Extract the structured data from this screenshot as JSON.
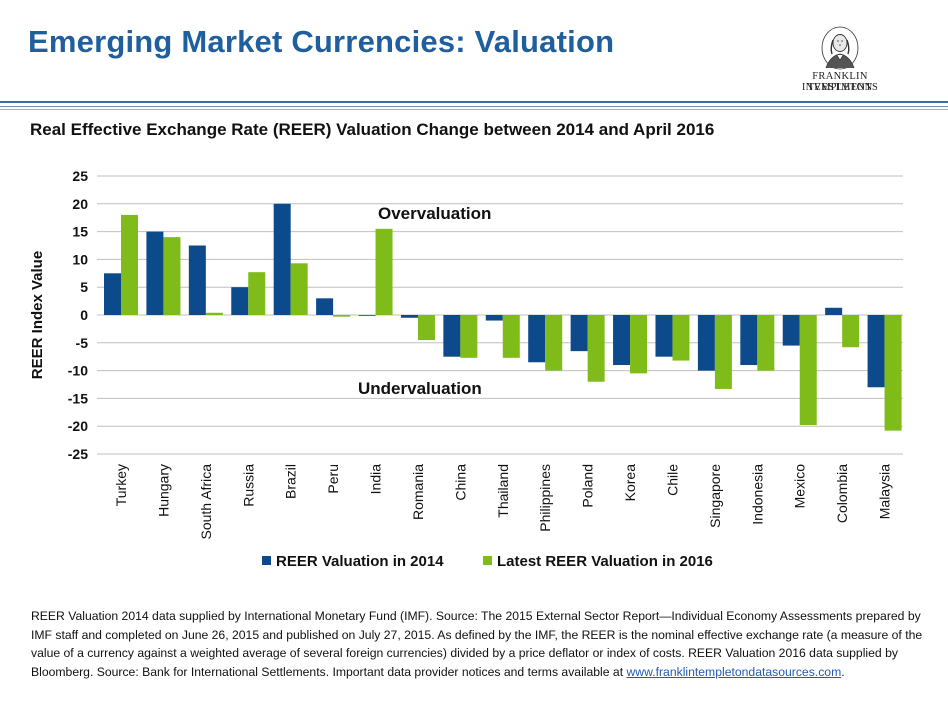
{
  "page_title": "Emerging Market Currencies: Valuation",
  "logo": {
    "line1": "FRANKLIN TEMPLETON",
    "line2": "INVESTMENTS"
  },
  "footnote": {
    "text": "REER Valuation 2014 data supplied by International Monetary Fund (IMF).  Source: The 2015 External Sector Report—Individual Economy Assessments prepared by IMF staff and completed on June 26, 2015 and published on July 27, 2015. As defined by the IMF, the REER is the nominal effective exchange rate (a measure of the value of a currency against a weighted average of several foreign currencies) divided by a price deflator or index of costs. REER Valuation 2016 data supplied by Bloomberg. Source: Bank for International Settlements. Important data provider notices and terms available at ",
    "link": "www.franklintempletondatasources.com",
    "end": "."
  },
  "colors": {
    "title": "#1f5f9e",
    "series_2014": "#0d4a8c",
    "series_2016": "#7fbc19",
    "grid": "#bfbfbf"
  },
  "chart_data": {
    "type": "bar",
    "title": "Real Effective Exchange Rate (REER) Valuation Change between 2014 and April 2016",
    "ylabel": "REER Index Value",
    "xlabel": "",
    "ylim": [
      -25,
      25
    ],
    "yticks": [
      25,
      20,
      15,
      10,
      5,
      0,
      -5,
      -10,
      -15,
      -20,
      -25
    ],
    "grid": true,
    "legend": "bottom",
    "categories": [
      "Turkey",
      "Hungary",
      "South Africa",
      "Russia",
      "Brazil",
      "Peru",
      "India",
      "Romania",
      "China",
      "Thailand",
      "Philippines",
      "Poland",
      "Korea",
      "Chile",
      "Singapore",
      "Indonesia",
      "Mexico",
      "Colombia",
      "Malaysia"
    ],
    "series": [
      {
        "name": "REER Valuation in 2014",
        "values": [
          7.5,
          15,
          12.5,
          5,
          20,
          3,
          0,
          -0.5,
          -7.5,
          -1,
          -8.5,
          -6.5,
          -9,
          -7.5,
          -10,
          -9,
          -5.5,
          1.3,
          -13
        ]
      },
      {
        "name": "Latest REER Valuation in 2016",
        "values": [
          18,
          14,
          0.4,
          7.7,
          9.3,
          -0.3,
          15.5,
          -4.5,
          -7.7,
          -7.7,
          -10,
          -12,
          -10.5,
          -8.2,
          -13.3,
          -10,
          -19.8,
          -5.8,
          -20.8
        ]
      }
    ],
    "annotations": [
      "Overvaluation",
      "Undervaluation"
    ]
  }
}
